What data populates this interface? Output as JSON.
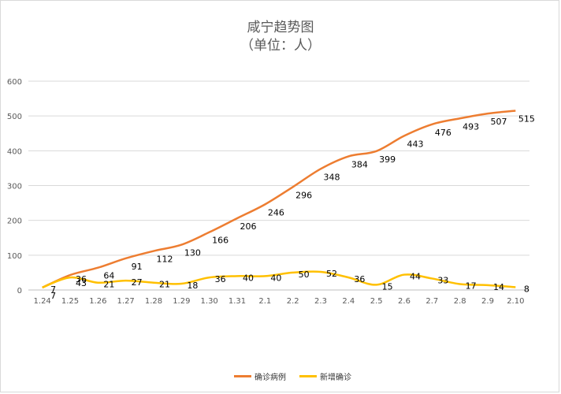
{
  "chart_data": {
    "type": "line",
    "title": "咸宁趋势图",
    "subtitle": "（单位：人）",
    "categories": [
      "1.24",
      "1.25",
      "1.26",
      "1.27",
      "1.28",
      "1.29",
      "1.30",
      "1.31",
      "2.1",
      "2.2",
      "2.3",
      "2.4",
      "2.5",
      "2.6",
      "2.7",
      "2.8",
      "2.9",
      "2.10"
    ],
    "ylim": [
      0,
      600
    ],
    "yticks": [
      0,
      100,
      200,
      300,
      400,
      500,
      600
    ],
    "grid": true,
    "legend_position": "bottom",
    "series": [
      {
        "name": "确诊病例",
        "color": "#ED7D31",
        "values": [
          7,
          43,
          64,
          91,
          112,
          130,
          166,
          206,
          246,
          296,
          348,
          384,
          399,
          443,
          476,
          493,
          507,
          515
        ]
      },
      {
        "name": "新增确诊",
        "color": "#FFC000",
        "values": [
          7,
          36,
          21,
          27,
          21,
          18,
          36,
          40,
          40,
          50,
          52,
          36,
          15,
          44,
          33,
          17,
          14,
          8
        ]
      }
    ]
  }
}
